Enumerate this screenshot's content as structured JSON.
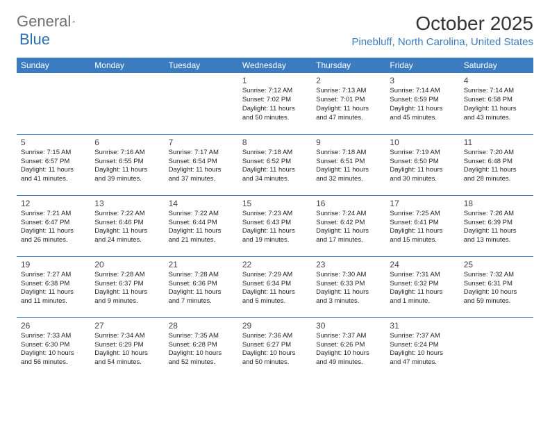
{
  "logo": {
    "text1": "General",
    "text2": "Blue"
  },
  "title": "October 2025",
  "location": "Pinebluff, North Carolina, United States",
  "colors": {
    "header_bg": "#3b7bbf",
    "header_text": "#ffffff",
    "border": "#3b7bbf",
    "logo_gray": "#6e6e6e",
    "logo_blue": "#2f6fae"
  },
  "weekdays": [
    "Sunday",
    "Monday",
    "Tuesday",
    "Wednesday",
    "Thursday",
    "Friday",
    "Saturday"
  ],
  "calendar": {
    "first_weekday_index": 3,
    "days_in_month": 31
  },
  "days": {
    "1": {
      "sunrise": "7:12 AM",
      "sunset": "7:02 PM",
      "daylight": "11 hours and 50 minutes."
    },
    "2": {
      "sunrise": "7:13 AM",
      "sunset": "7:01 PM",
      "daylight": "11 hours and 47 minutes."
    },
    "3": {
      "sunrise": "7:14 AM",
      "sunset": "6:59 PM",
      "daylight": "11 hours and 45 minutes."
    },
    "4": {
      "sunrise": "7:14 AM",
      "sunset": "6:58 PM",
      "daylight": "11 hours and 43 minutes."
    },
    "5": {
      "sunrise": "7:15 AM",
      "sunset": "6:57 PM",
      "daylight": "11 hours and 41 minutes."
    },
    "6": {
      "sunrise": "7:16 AM",
      "sunset": "6:55 PM",
      "daylight": "11 hours and 39 minutes."
    },
    "7": {
      "sunrise": "7:17 AM",
      "sunset": "6:54 PM",
      "daylight": "11 hours and 37 minutes."
    },
    "8": {
      "sunrise": "7:18 AM",
      "sunset": "6:52 PM",
      "daylight": "11 hours and 34 minutes."
    },
    "9": {
      "sunrise": "7:18 AM",
      "sunset": "6:51 PM",
      "daylight": "11 hours and 32 minutes."
    },
    "10": {
      "sunrise": "7:19 AM",
      "sunset": "6:50 PM",
      "daylight": "11 hours and 30 minutes."
    },
    "11": {
      "sunrise": "7:20 AM",
      "sunset": "6:48 PM",
      "daylight": "11 hours and 28 minutes."
    },
    "12": {
      "sunrise": "7:21 AM",
      "sunset": "6:47 PM",
      "daylight": "11 hours and 26 minutes."
    },
    "13": {
      "sunrise": "7:22 AM",
      "sunset": "6:46 PM",
      "daylight": "11 hours and 24 minutes."
    },
    "14": {
      "sunrise": "7:22 AM",
      "sunset": "6:44 PM",
      "daylight": "11 hours and 21 minutes."
    },
    "15": {
      "sunrise": "7:23 AM",
      "sunset": "6:43 PM",
      "daylight": "11 hours and 19 minutes."
    },
    "16": {
      "sunrise": "7:24 AM",
      "sunset": "6:42 PM",
      "daylight": "11 hours and 17 minutes."
    },
    "17": {
      "sunrise": "7:25 AM",
      "sunset": "6:41 PM",
      "daylight": "11 hours and 15 minutes."
    },
    "18": {
      "sunrise": "7:26 AM",
      "sunset": "6:39 PM",
      "daylight": "11 hours and 13 minutes."
    },
    "19": {
      "sunrise": "7:27 AM",
      "sunset": "6:38 PM",
      "daylight": "11 hours and 11 minutes."
    },
    "20": {
      "sunrise": "7:28 AM",
      "sunset": "6:37 PM",
      "daylight": "11 hours and 9 minutes."
    },
    "21": {
      "sunrise": "7:28 AM",
      "sunset": "6:36 PM",
      "daylight": "11 hours and 7 minutes."
    },
    "22": {
      "sunrise": "7:29 AM",
      "sunset": "6:34 PM",
      "daylight": "11 hours and 5 minutes."
    },
    "23": {
      "sunrise": "7:30 AM",
      "sunset": "6:33 PM",
      "daylight": "11 hours and 3 minutes."
    },
    "24": {
      "sunrise": "7:31 AM",
      "sunset": "6:32 PM",
      "daylight": "11 hours and 1 minute."
    },
    "25": {
      "sunrise": "7:32 AM",
      "sunset": "6:31 PM",
      "daylight": "10 hours and 59 minutes."
    },
    "26": {
      "sunrise": "7:33 AM",
      "sunset": "6:30 PM",
      "daylight": "10 hours and 56 minutes."
    },
    "27": {
      "sunrise": "7:34 AM",
      "sunset": "6:29 PM",
      "daylight": "10 hours and 54 minutes."
    },
    "28": {
      "sunrise": "7:35 AM",
      "sunset": "6:28 PM",
      "daylight": "10 hours and 52 minutes."
    },
    "29": {
      "sunrise": "7:36 AM",
      "sunset": "6:27 PM",
      "daylight": "10 hours and 50 minutes."
    },
    "30": {
      "sunrise": "7:37 AM",
      "sunset": "6:26 PM",
      "daylight": "10 hours and 49 minutes."
    },
    "31": {
      "sunrise": "7:37 AM",
      "sunset": "6:24 PM",
      "daylight": "10 hours and 47 minutes."
    }
  },
  "labels": {
    "sunrise": "Sunrise: ",
    "sunset": "Sunset: ",
    "daylight": "Daylight: "
  }
}
